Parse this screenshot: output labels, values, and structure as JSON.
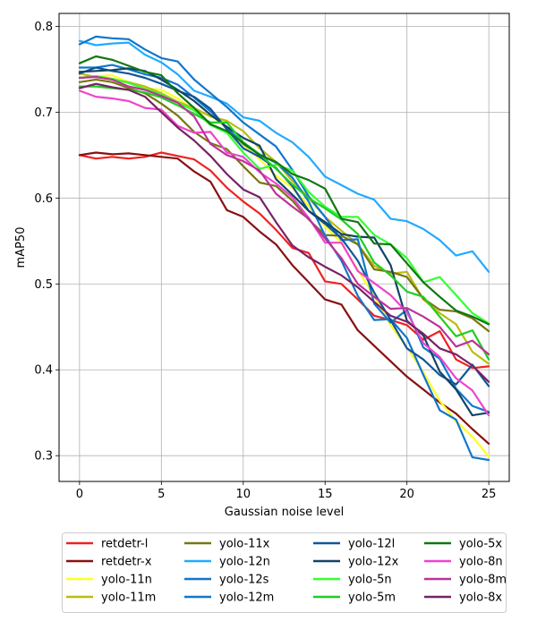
{
  "chart_data": {
    "type": "line",
    "title": "",
    "xlabel": "Gaussian noise level",
    "ylabel": "mAP50",
    "xlim": [
      -1.25,
      26.25
    ],
    "ylim": [
      0.27,
      0.815
    ],
    "xticks": [
      0,
      5,
      10,
      15,
      20,
      25
    ],
    "yticks": [
      0.3,
      0.4,
      0.5,
      0.6,
      0.7,
      0.8
    ],
    "grid": true,
    "legend_position": "bottom-center, 4 columns",
    "x": [
      0,
      1,
      2,
      3,
      4,
      5,
      6,
      7,
      8,
      9,
      10,
      11,
      12,
      13,
      14,
      15,
      16,
      17,
      18,
      19,
      20,
      21,
      22,
      23,
      24,
      25
    ],
    "series": [
      {
        "name": "retdetr-l",
        "color": "#ee2222",
        "values": [
          0.65,
          0.646,
          0.648,
          0.646,
          0.648,
          0.653,
          0.649,
          0.645,
          0.632,
          0.612,
          0.596,
          0.582,
          0.563,
          0.542,
          0.536,
          0.503,
          0.5,
          0.482,
          0.463,
          0.458,
          0.452,
          0.435,
          0.445,
          0.412,
          0.402,
          0.404
        ]
      },
      {
        "name": "retdetr-x",
        "color": "#881111",
        "values": [
          0.65,
          0.653,
          0.651,
          0.652,
          0.65,
          0.648,
          0.646,
          0.631,
          0.619,
          0.586,
          0.578,
          0.561,
          0.546,
          0.522,
          0.502,
          0.482,
          0.476,
          0.446,
          0.428,
          0.41,
          0.392,
          0.377,
          0.362,
          0.349,
          0.331,
          0.314
        ]
      },
      {
        "name": "yolo-11n",
        "color": "#ffff22",
        "values": [
          0.74,
          0.742,
          0.743,
          0.735,
          0.728,
          0.726,
          0.716,
          0.702,
          0.696,
          0.682,
          0.662,
          0.645,
          0.626,
          0.612,
          0.591,
          0.567,
          0.548,
          0.516,
          0.486,
          0.452,
          0.426,
          0.397,
          0.364,
          0.34,
          0.322,
          0.299
        ]
      },
      {
        "name": "yolo-11m",
        "color": "#bbbb11",
        "values": [
          0.745,
          0.741,
          0.738,
          0.735,
          0.73,
          0.722,
          0.712,
          0.705,
          0.695,
          0.69,
          0.678,
          0.658,
          0.642,
          0.62,
          0.6,
          0.578,
          0.562,
          0.546,
          0.521,
          0.512,
          0.514,
          0.482,
          0.466,
          0.453,
          0.421,
          0.407
        ]
      },
      {
        "name": "yolo-11x",
        "color": "#777711",
        "values": [
          0.735,
          0.738,
          0.735,
          0.728,
          0.722,
          0.71,
          0.696,
          0.677,
          0.664,
          0.657,
          0.637,
          0.618,
          0.614,
          0.597,
          0.575,
          0.557,
          0.556,
          0.546,
          0.517,
          0.514,
          0.508,
          0.483,
          0.47,
          0.468,
          0.46,
          0.445
        ]
      },
      {
        "name": "yolo-12n",
        "color": "#22aaff",
        "values": [
          0.783,
          0.778,
          0.78,
          0.781,
          0.767,
          0.758,
          0.744,
          0.725,
          0.718,
          0.71,
          0.694,
          0.69,
          0.676,
          0.665,
          0.648,
          0.625,
          0.615,
          0.605,
          0.598,
          0.576,
          0.573,
          0.564,
          0.551,
          0.533,
          0.538,
          0.514
        ]
      },
      {
        "name": "yolo-12s",
        "color": "#1177cc",
        "values": [
          0.752,
          0.752,
          0.755,
          0.75,
          0.744,
          0.74,
          0.732,
          0.717,
          0.701,
          0.682,
          0.663,
          0.651,
          0.641,
          0.624,
          0.596,
          0.556,
          0.527,
          0.486,
          0.458,
          0.459,
          0.437,
          0.394,
          0.353,
          0.342,
          0.298,
          0.295
        ]
      },
      {
        "name": "yolo-12m",
        "color": "#1177cc",
        "values": [
          0.779,
          0.788,
          0.786,
          0.785,
          0.773,
          0.763,
          0.759,
          0.738,
          0.722,
          0.706,
          0.688,
          0.674,
          0.66,
          0.633,
          0.602,
          0.578,
          0.551,
          0.552,
          0.477,
          0.455,
          0.47,
          0.426,
          0.413,
          0.378,
          0.358,
          0.351
        ]
      },
      {
        "name": "yolo-12l",
        "color": "#115599",
        "values": [
          0.745,
          0.752,
          0.748,
          0.745,
          0.74,
          0.733,
          0.725,
          0.718,
          0.704,
          0.68,
          0.658,
          0.648,
          0.635,
          0.614,
          0.585,
          0.57,
          0.553,
          0.527,
          0.49,
          0.458,
          0.425,
          0.412,
          0.394,
          0.383,
          0.406,
          0.381
        ]
      },
      {
        "name": "yolo-12x",
        "color": "#114466",
        "values": [
          0.747,
          0.748,
          0.749,
          0.751,
          0.748,
          0.738,
          0.726,
          0.713,
          0.697,
          0.683,
          0.67,
          0.661,
          0.622,
          0.604,
          0.585,
          0.572,
          0.558,
          0.555,
          0.554,
          0.522,
          0.457,
          0.44,
          0.398,
          0.377,
          0.347,
          0.35
        ]
      },
      {
        "name": "yolo-5n",
        "color": "#33ff33",
        "values": [
          0.74,
          0.742,
          0.739,
          0.734,
          0.727,
          0.721,
          0.711,
          0.702,
          0.685,
          0.676,
          0.653,
          0.634,
          0.639,
          0.632,
          0.607,
          0.59,
          0.578,
          0.578,
          0.557,
          0.546,
          0.53,
          0.502,
          0.508,
          0.487,
          0.466,
          0.454
        ]
      },
      {
        "name": "yolo-5m",
        "color": "#22cc22",
        "values": [
          0.73,
          0.73,
          0.728,
          0.726,
          0.723,
          0.717,
          0.708,
          0.698,
          0.688,
          0.688,
          0.665,
          0.651,
          0.634,
          0.616,
          0.6,
          0.588,
          0.575,
          0.558,
          0.525,
          0.51,
          0.491,
          0.485,
          0.462,
          0.439,
          0.446,
          0.412
        ]
      },
      {
        "name": "yolo-5x",
        "color": "#117711",
        "values": [
          0.757,
          0.765,
          0.761,
          0.754,
          0.747,
          0.743,
          0.722,
          0.705,
          0.686,
          0.678,
          0.664,
          0.65,
          0.642,
          0.628,
          0.621,
          0.611,
          0.576,
          0.572,
          0.547,
          0.546,
          0.524,
          0.502,
          0.485,
          0.469,
          0.462,
          0.453
        ]
      },
      {
        "name": "yolo-8n",
        "color": "#ee44cc",
        "values": [
          0.725,
          0.718,
          0.716,
          0.713,
          0.705,
          0.703,
          0.684,
          0.676,
          0.677,
          0.653,
          0.648,
          0.63,
          0.617,
          0.601,
          0.577,
          0.548,
          0.548,
          0.515,
          0.501,
          0.487,
          0.467,
          0.431,
          0.415,
          0.39,
          0.376,
          0.347
        ]
      },
      {
        "name": "yolo-8m",
        "color": "#bb3399",
        "values": [
          0.74,
          0.741,
          0.738,
          0.73,
          0.726,
          0.719,
          0.711,
          0.695,
          0.663,
          0.65,
          0.643,
          0.632,
          0.605,
          0.59,
          0.576,
          0.553,
          0.53,
          0.5,
          0.485,
          0.471,
          0.472,
          0.462,
          0.45,
          0.427,
          0.434,
          0.418
        ]
      },
      {
        "name": "yolo-8x",
        "color": "#772266",
        "values": [
          0.728,
          0.733,
          0.729,
          0.726,
          0.718,
          0.7,
          0.682,
          0.667,
          0.649,
          0.628,
          0.61,
          0.601,
          0.572,
          0.545,
          0.531,
          0.52,
          0.51,
          0.496,
          0.479,
          0.463,
          0.456,
          0.442,
          0.425,
          0.418,
          0.405,
          0.386
        ]
      }
    ]
  }
}
